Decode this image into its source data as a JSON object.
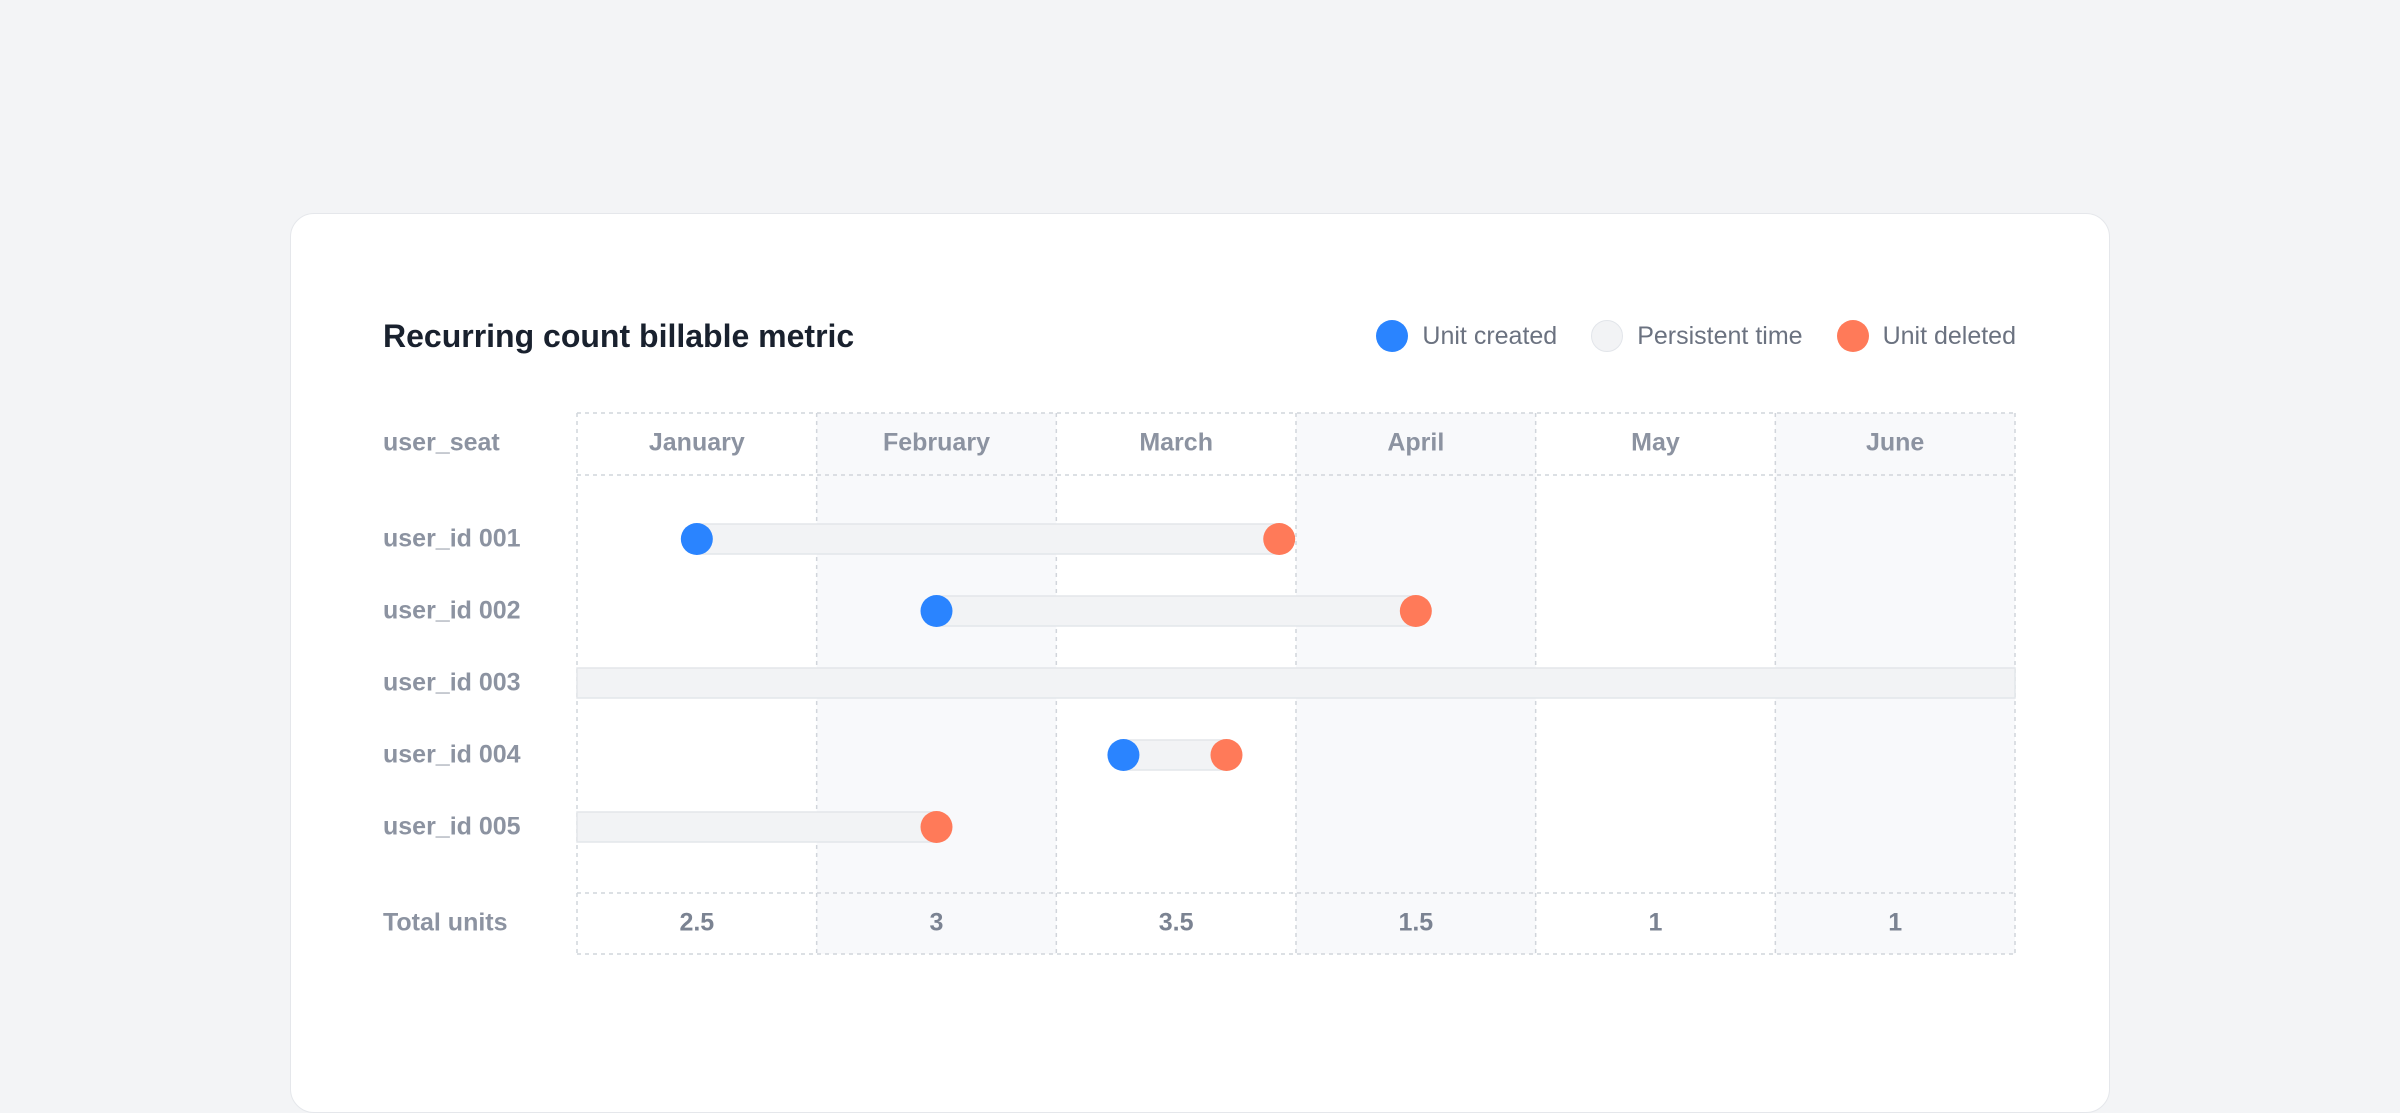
{
  "title": "Recurring count billable metric",
  "legend": {
    "items": [
      {
        "label": "Unit created",
        "color": "#2a84ff"
      },
      {
        "label": "Persistent time",
        "color": "#f2f3f5"
      },
      {
        "label": "Unit deleted",
        "color": "#ff7a59"
      }
    ]
  },
  "metric_label": "user_seat",
  "total_label": "Total units",
  "chart_data": {
    "type": "timeline",
    "months": [
      "January",
      "February",
      "March",
      "April",
      "May",
      "June"
    ],
    "rows": [
      {
        "label": "user_id 001",
        "start": 0.5,
        "end": 2.93,
        "created_marker": true,
        "deleted_marker": true
      },
      {
        "label": "user_id 002",
        "start": 1.5,
        "end": 3.5,
        "created_marker": true,
        "deleted_marker": true
      },
      {
        "label": "user_id 003",
        "start": 0,
        "end": 6,
        "created_marker": false,
        "deleted_marker": false
      },
      {
        "label": "user_id 004",
        "start": 2.28,
        "end": 2.71,
        "created_marker": true,
        "deleted_marker": true
      },
      {
        "label": "user_id 005",
        "start": 0,
        "end": 1.5,
        "created_marker": false,
        "deleted_marker": true
      }
    ],
    "totals": [
      "2.5",
      "3",
      "3.5",
      "1.5",
      "1",
      "1"
    ],
    "colors": {
      "created": "#2a84ff",
      "persistent": "#f2f3f5",
      "deleted": "#ff7a59",
      "shaded_column": "#f8f9fb",
      "grid": "#d1d5db"
    }
  }
}
